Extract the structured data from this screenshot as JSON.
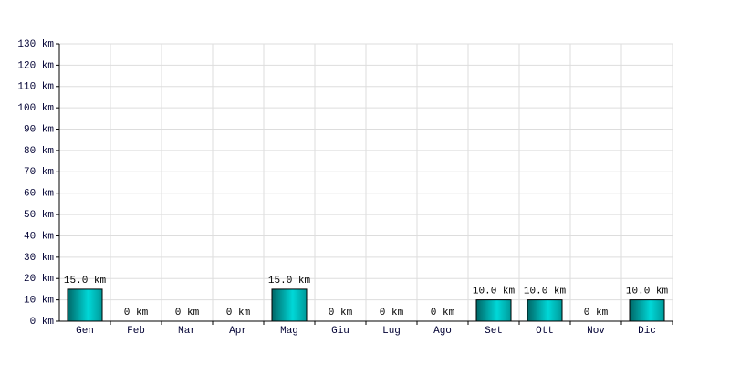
{
  "chart_data": {
    "type": "bar",
    "categories": [
      "Gen",
      "Feb",
      "Mar",
      "Apr",
      "Mag",
      "Giu",
      "Lug",
      "Ago",
      "Set",
      "Ott",
      "Nov",
      "Dic"
    ],
    "values": [
      15,
      0,
      0,
      0,
      15,
      0,
      0,
      0,
      10,
      10,
      0,
      10
    ],
    "value_labels": [
      "15.0 km",
      "0 km",
      "0 km",
      "0 km",
      "15.0 km",
      "0 km",
      "0 km",
      "0 km",
      "10.0 km",
      "10.0 km",
      "0 km",
      "10.0 km"
    ],
    "color": "#00d8d8",
    "ylim": [
      0,
      130
    ],
    "yticks": [
      {
        "value": 0,
        "label": "0 km"
      },
      {
        "value": 10,
        "label": "10 km"
      },
      {
        "value": 20,
        "label": "20 km"
      },
      {
        "value": 30,
        "label": "30 km"
      },
      {
        "value": 40,
        "label": "40 km"
      },
      {
        "value": 50,
        "label": "50 km"
      },
      {
        "value": 60,
        "label": "60 km"
      },
      {
        "value": 70,
        "label": "70 km"
      },
      {
        "value": 80,
        "label": "80 km"
      },
      {
        "value": 90,
        "label": "90 km"
      },
      {
        "value": 100,
        "label": "100 km"
      },
      {
        "value": 110,
        "label": "110 km"
      },
      {
        "value": 120,
        "label": "120 km"
      },
      {
        "value": 130,
        "label": "130 km"
      }
    ],
    "grid": true
  }
}
